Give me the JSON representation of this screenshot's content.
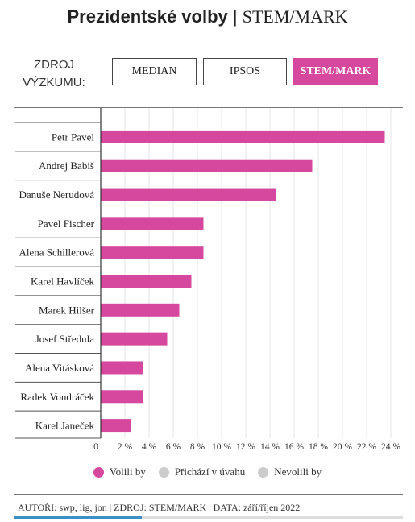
{
  "header": {
    "title_bold": "Prezidentské volby",
    "separator": " | ",
    "title_source": "STEM/MARK"
  },
  "sources": {
    "label_line1": "ZDROJ",
    "label_line2": "VÝZKUMU:",
    "buttons": [
      {
        "label": "MEDIAN",
        "active": false
      },
      {
        "label": "IPSOS",
        "active": false
      },
      {
        "label": "STEM/MARK",
        "active": true
      }
    ]
  },
  "chart_data": {
    "type": "bar",
    "orientation": "horizontal",
    "categories": [
      "Petr Pavel",
      "Andrej Babiš",
      "Danuše Nerudová",
      "Pavel Fischer",
      "Alena Schillerová",
      "Karel Havlíček",
      "Marek Hilšer",
      "Josef Středula",
      "Alena Vitásková",
      "Radek Vondráček",
      "Karel Janeček"
    ],
    "series": [
      {
        "name": "Volili by",
        "color": "#d6489d",
        "values": [
          23.5,
          17.5,
          14.5,
          8.5,
          8.5,
          7.5,
          6.5,
          5.5,
          3.5,
          3.5,
          2.5
        ]
      }
    ],
    "xlim": [
      0,
      24
    ],
    "xticks": [
      "0",
      "2 %",
      "4 %",
      "6 %",
      "8 %",
      "10 %",
      "12 %",
      "14 %",
      "16 %",
      "18 %",
      "20 %",
      "22 %",
      "24 %"
    ],
    "grid": true
  },
  "legend": [
    {
      "label": "Volili by",
      "color": "#d6489d"
    },
    {
      "label": "Přichází v úvahu",
      "color": "#cccccc"
    },
    {
      "label": "Nevolili by",
      "color": "#cccccc"
    }
  ],
  "footer": "AUTOŘI: swp, lig, jon | ZDROJ: STEM/MARK | DATA: září/říjen 2022",
  "scroll_progress": 0.33
}
